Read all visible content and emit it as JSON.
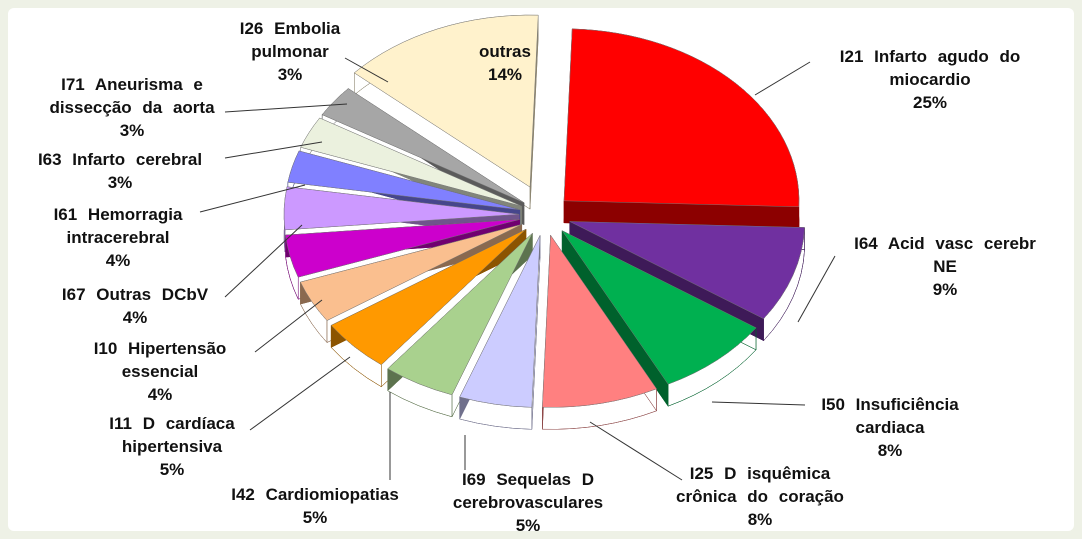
{
  "chart_data": {
    "type": "pie",
    "categories": [
      "I21 Infarto agudo do miocardio",
      "I64 Acid vasc cerebr NE",
      "I50 Insuficiência cardiaca",
      "I25 D isquêmica crônica do coração",
      "I69 Sequelas D cerebrovasculares",
      "I42 Cardiomiopatias",
      "I11 D cardíaca hipertensiva",
      "I10 Hipertensão essencial",
      "I67 Outras DCbV",
      "I61 Hemorragia intracerebral",
      "I63 Infarto cerebral",
      "I71 Aneurisma e dissecção da aorta",
      "I26 Embolia pulmonar",
      "outras"
    ],
    "values": [
      25,
      9,
      8,
      8,
      5,
      5,
      5,
      4,
      4,
      4,
      3,
      3,
      3,
      14
    ],
    "value_labels": [
      "25%",
      "9%",
      "8%",
      "8%",
      "5%",
      "5%",
      "5%",
      "4%",
      "4%",
      "4%",
      "3%",
      "3%",
      "3%",
      "14%"
    ],
    "colors": [
      "#ff0000",
      "#7030a0",
      "#00b050",
      "#ff8080",
      "#ccccff",
      "#a9d18e",
      "#ff9900",
      "#fabf8f",
      "#cc00cc",
      "#cc99ff",
      "#8080ff",
      "#ebf1de",
      "#a6a6a6",
      "#fff2cc"
    ]
  }
}
